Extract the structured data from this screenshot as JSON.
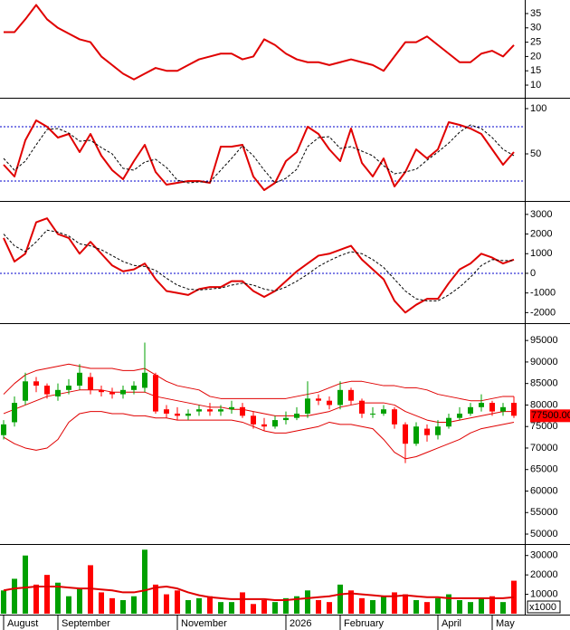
{
  "chart_data": [
    {
      "type": "line",
      "ylim": [
        5.9,
        39.1
      ],
      "yticks": [
        10,
        15,
        20,
        25,
        30,
        35
      ],
      "series": [
        {
          "color": "#e00000",
          "values": [
            28.5,
            28.5,
            33,
            38,
            33,
            30,
            28,
            26,
            25,
            20,
            17,
            14,
            12,
            14,
            16,
            15,
            15,
            17,
            19,
            20,
            21,
            21,
            19,
            20,
            26,
            24,
            21,
            19,
            18,
            18,
            17,
            18,
            19,
            18,
            17,
            15,
            20,
            25,
            25,
            27,
            24,
            21,
            18,
            18,
            21,
            22,
            20,
            24
          ]
        }
      ]
    },
    {
      "type": "line",
      "ylim": [
        0,
        108
      ],
      "yticks": [
        50,
        100
      ],
      "levels": [
        20,
        80
      ],
      "level_color": "#0000cc",
      "series": [
        {
          "color": "#e00000",
          "values": [
            38,
            25,
            65,
            87,
            80,
            68,
            72,
            52,
            72,
            48,
            32,
            22,
            42,
            60,
            30,
            16,
            18,
            20,
            20,
            18,
            58,
            58,
            60,
            25,
            10,
            18,
            42,
            52,
            80,
            72,
            55,
            42,
            78,
            40,
            25,
            45,
            14,
            30,
            55,
            45,
            55,
            85,
            82,
            78,
            72,
            55,
            38,
            52
          ]
        },
        {
          "color": "#000000",
          "dash": true,
          "values": [
            45,
            32,
            42,
            60,
            77,
            78,
            73,
            64,
            65,
            57,
            50,
            34,
            32,
            41,
            44,
            35,
            21,
            18,
            19,
            19,
            32,
            45,
            59,
            48,
            32,
            18,
            23,
            33,
            58,
            68,
            69,
            56,
            58,
            53,
            48,
            37,
            28,
            30,
            33,
            43,
            52,
            62,
            74,
            82,
            78,
            68,
            55,
            48
          ]
        }
      ]
    },
    {
      "type": "line",
      "ylim": [
        -2490,
        3500
      ],
      "yticks": [
        -2000,
        -1000,
        0,
        1000,
        2000,
        3000
      ],
      "levels": [
        0
      ],
      "level_color": "#0000cc",
      "series": [
        {
          "color": "#e00000",
          "values": [
            1800,
            600,
            1000,
            2600,
            2800,
            2000,
            1800,
            1000,
            1600,
            1000,
            400,
            100,
            200,
            500,
            -300,
            -900,
            -1000,
            -1100,
            -800,
            -700,
            -700,
            -400,
            -400,
            -900,
            -1200,
            -900,
            -400,
            100,
            500,
            900,
            1000,
            1200,
            1400,
            700,
            200,
            -300,
            -1400,
            -2000,
            -1600,
            -1300,
            -1300,
            -500,
            200,
            500,
            1000,
            800,
            500,
            700
          ]
        },
        {
          "color": "#000000",
          "dash": true,
          "values": [
            2000,
            1400,
            1100,
            1600,
            2200,
            2100,
            1900,
            1500,
            1400,
            1200,
            900,
            600,
            400,
            350,
            150,
            -250,
            -600,
            -800,
            -850,
            -800,
            -750,
            -600,
            -500,
            -600,
            -800,
            -900,
            -700,
            -400,
            -50,
            350,
            650,
            900,
            1100,
            1000,
            700,
            300,
            -300,
            -900,
            -1300,
            -1400,
            -1400,
            -1100,
            -700,
            -200,
            400,
            700,
            650,
            650
          ]
        }
      ]
    },
    {
      "type": "candlestick",
      "ylim": [
        47900,
        98400
      ],
      "yticks": [
        50000,
        55000,
        60000,
        65000,
        70000,
        75000,
        80000,
        85000,
        90000,
        95000
      ],
      "up_color": "#00a000",
      "down_color": "#ff0000",
      "last_label": "77500.00",
      "last_label_color": "#ff0000",
      "open": [
        73000,
        76000,
        81000,
        85500,
        84500,
        82000,
        83500,
        84500,
        86500,
        83500,
        83000,
        82500,
        83500,
        84000,
        87000,
        79000,
        78000,
        77500,
        78500,
        79000,
        78500,
        79000,
        79500,
        77500,
        75500,
        75000,
        76500,
        77000,
        78000,
        81500,
        81000,
        80000,
        83500,
        81000,
        78000,
        78000,
        79000,
        75500,
        71000,
        74500,
        73000,
        75000,
        77000,
        78000,
        79500,
        80500,
        78500,
        80500
      ],
      "high": [
        76500,
        82000,
        87500,
        86500,
        85000,
        85000,
        86000,
        89500,
        87500,
        84500,
        84000,
        84500,
        85500,
        94500,
        87500,
        80000,
        79500,
        79000,
        80000,
        80500,
        80000,
        81000,
        80500,
        78500,
        77000,
        77500,
        78500,
        79500,
        85500,
        82500,
        82000,
        85500,
        84000,
        81500,
        79500,
        80000,
        79500,
        76000,
        76000,
        75500,
        76500,
        78000,
        79500,
        80500,
        82500,
        81000,
        80500,
        82000
      ],
      "low": [
        72000,
        75000,
        80000,
        83000,
        81500,
        81000,
        82500,
        83500,
        82500,
        82000,
        81500,
        81500,
        82500,
        83000,
        78000,
        77000,
        76500,
        76500,
        77500,
        77500,
        77500,
        78000,
        77000,
        74500,
        74000,
        74500,
        75500,
        76500,
        77000,
        80000,
        79000,
        79000,
        80000,
        77000,
        77000,
        77500,
        74500,
        66500,
        70500,
        71500,
        72000,
        74500,
        76500,
        77500,
        78500,
        77500,
        77500,
        77000
      ],
      "close": [
        75500,
        80500,
        85500,
        84500,
        82500,
        83500,
        84500,
        87500,
        83500,
        83000,
        82500,
        83500,
        84500,
        87500,
        78500,
        78000,
        77500,
        78000,
        79000,
        78500,
        79000,
        79500,
        77500,
        75500,
        75000,
        76500,
        77000,
        78000,
        81500,
        81000,
        80000,
        83500,
        81000,
        78000,
        78000,
        79000,
        75500,
        71000,
        75000,
        73000,
        75000,
        77000,
        78000,
        79500,
        80500,
        78500,
        79500,
        77500
      ],
      "series": [
        {
          "color": "#e00000",
          "values": [
            82500,
            85000,
            87000,
            88000,
            88500,
            89000,
            89500,
            89000,
            88500,
            88500,
            88500,
            88000,
            88000,
            88500,
            87000,
            85500,
            84500,
            84000,
            83500,
            82000,
            81500,
            81500,
            81500,
            81500,
            81500,
            81500,
            81500,
            82000,
            82500,
            83000,
            84000,
            85000,
            85500,
            85500,
            85000,
            84500,
            84500,
            84000,
            84000,
            83500,
            82500,
            82000,
            81500,
            81000,
            81000,
            81500,
            82000,
            82000
          ]
        },
        {
          "color": "#e00000",
          "values": [
            78000,
            79000,
            80000,
            81000,
            82000,
            82500,
            83000,
            83500,
            83500,
            83500,
            83000,
            83000,
            83000,
            83000,
            82000,
            81500,
            81000,
            80500,
            80000,
            79500,
            79500,
            79000,
            79000,
            78500,
            78000,
            77500,
            77500,
            77500,
            77500,
            78000,
            78500,
            79500,
            80000,
            80500,
            80500,
            80500,
            80000,
            78500,
            77500,
            76500,
            76000,
            76000,
            76500,
            77000,
            77500,
            78000,
            78500,
            78500
          ]
        },
        {
          "color": "#e00000",
          "values": [
            72500,
            71000,
            70000,
            69500,
            70000,
            72000,
            76000,
            78000,
            78500,
            78500,
            78000,
            78000,
            77500,
            77500,
            77000,
            77000,
            76500,
            76500,
            76500,
            76500,
            76500,
            76500,
            76000,
            75000,
            74000,
            73500,
            73500,
            74000,
            74500,
            75000,
            76000,
            75500,
            75500,
            75000,
            74500,
            72000,
            69000,
            67500,
            68000,
            69000,
            70000,
            71000,
            72000,
            73500,
            74500,
            75000,
            75500,
            76000
          ]
        }
      ]
    },
    {
      "type": "bar",
      "ylim": [
        0,
        35000
      ],
      "yticks": [
        10000,
        20000,
        30000
      ],
      "unit_label": "x1000",
      "up_color": "#00a000",
      "down_color": "#ff0000",
      "categories": [
        "August",
        null,
        null,
        null,
        null,
        "September",
        null,
        null,
        null,
        null,
        null,
        null,
        null,
        null,
        null,
        null,
        "November",
        null,
        null,
        null,
        null,
        null,
        null,
        null,
        null,
        null,
        "2026",
        null,
        null,
        null,
        null,
        "February",
        null,
        null,
        null,
        null,
        null,
        null,
        null,
        null,
        "April",
        null,
        null,
        null,
        null,
        "May",
        null,
        null
      ],
      "values": [
        12000,
        18000,
        30000,
        15000,
        20000,
        16000,
        9000,
        13000,
        25000,
        11000,
        8000,
        7000,
        9000,
        33000,
        15000,
        10000,
        12000,
        7000,
        8000,
        9000,
        6000,
        6000,
        11000,
        5000,
        7000,
        6000,
        8000,
        9000,
        12000,
        7000,
        6000,
        15000,
        12000,
        8000,
        7000,
        9000,
        11000,
        10000,
        7000,
        6000,
        8000,
        10000,
        7000,
        6000,
        8000,
        9000,
        6000,
        17000
      ],
      "series": [
        {
          "color": "#e00000",
          "values": [
            12000,
            13000,
            13500,
            14000,
            14000,
            14000,
            13500,
            13000,
            13000,
            12500,
            12000,
            11000,
            11000,
            12000,
            13500,
            14000,
            13000,
            11000,
            9500,
            8500,
            8000,
            7500,
            7500,
            7500,
            7500,
            7000,
            7000,
            7500,
            8000,
            8500,
            9000,
            10000,
            10500,
            10000,
            9500,
            9000,
            9000,
            9500,
            9000,
            8500,
            8500,
            8000,
            8000,
            8000,
            8000,
            8000,
            8000,
            8500
          ]
        }
      ]
    }
  ]
}
